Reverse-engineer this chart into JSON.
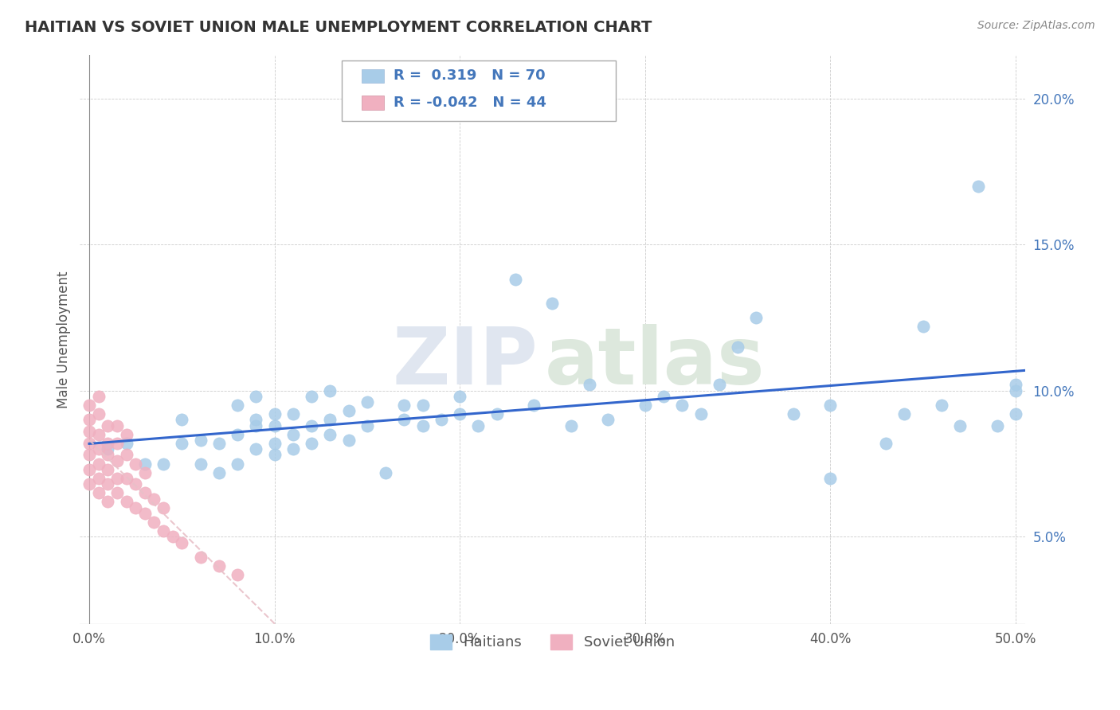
{
  "title": "HAITIAN VS SOVIET UNION MALE UNEMPLOYMENT CORRELATION CHART",
  "source_text": "Source: ZipAtlas.com",
  "ylabel": "Male Unemployment",
  "xlim": [
    -0.005,
    0.505
  ],
  "ylim": [
    0.02,
    0.215
  ],
  "yticks": [
    0.05,
    0.1,
    0.15,
    0.2
  ],
  "ytick_labels": [
    "5.0%",
    "10.0%",
    "15.0%",
    "20.0%"
  ],
  "xticks": [
    0.0,
    0.1,
    0.2,
    0.3,
    0.4,
    0.5
  ],
  "xtick_labels": [
    "0.0%",
    "10.0%",
    "20.0%",
    "30.0%",
    "40.0%",
    "50.0%"
  ],
  "background_color": "#ffffff",
  "grid_color": "#cccccc",
  "haitian_color": "#a8cce8",
  "soviet_color": "#f0b0c0",
  "haitian_line_color": "#3366cc",
  "soviet_line_color": "#d9a0a0",
  "tick_color": "#4477bb",
  "title_color": "#333333",
  "legend_r_haitian": "0.319",
  "legend_n_haitian": "70",
  "legend_r_soviet": "-0.042",
  "legend_n_soviet": "44",
  "haitian_x": [
    0.01,
    0.02,
    0.03,
    0.04,
    0.05,
    0.05,
    0.06,
    0.06,
    0.07,
    0.07,
    0.08,
    0.08,
    0.08,
    0.09,
    0.09,
    0.09,
    0.09,
    0.1,
    0.1,
    0.1,
    0.1,
    0.11,
    0.11,
    0.11,
    0.12,
    0.12,
    0.12,
    0.13,
    0.13,
    0.13,
    0.14,
    0.14,
    0.15,
    0.15,
    0.16,
    0.17,
    0.17,
    0.18,
    0.18,
    0.19,
    0.2,
    0.2,
    0.21,
    0.22,
    0.23,
    0.24,
    0.25,
    0.26,
    0.27,
    0.28,
    0.3,
    0.31,
    0.32,
    0.33,
    0.34,
    0.35,
    0.36,
    0.38,
    0.4,
    0.4,
    0.43,
    0.44,
    0.45,
    0.46,
    0.47,
    0.48,
    0.49,
    0.5,
    0.5,
    0.5
  ],
  "haitian_y": [
    0.08,
    0.082,
    0.075,
    0.075,
    0.082,
    0.09,
    0.075,
    0.083,
    0.072,
    0.082,
    0.075,
    0.085,
    0.095,
    0.08,
    0.088,
    0.09,
    0.098,
    0.078,
    0.082,
    0.088,
    0.092,
    0.08,
    0.085,
    0.092,
    0.082,
    0.088,
    0.098,
    0.085,
    0.09,
    0.1,
    0.083,
    0.093,
    0.088,
    0.096,
    0.072,
    0.09,
    0.095,
    0.088,
    0.095,
    0.09,
    0.092,
    0.098,
    0.088,
    0.092,
    0.138,
    0.095,
    0.13,
    0.088,
    0.102,
    0.09,
    0.095,
    0.098,
    0.095,
    0.092,
    0.102,
    0.115,
    0.125,
    0.092,
    0.07,
    0.095,
    0.082,
    0.092,
    0.122,
    0.095,
    0.088,
    0.17,
    0.088,
    0.102,
    0.092,
    0.1
  ],
  "soviet_x": [
    0.0,
    0.0,
    0.0,
    0.0,
    0.0,
    0.0,
    0.0,
    0.005,
    0.005,
    0.005,
    0.005,
    0.005,
    0.005,
    0.005,
    0.01,
    0.01,
    0.01,
    0.01,
    0.01,
    0.01,
    0.015,
    0.015,
    0.015,
    0.015,
    0.015,
    0.02,
    0.02,
    0.02,
    0.02,
    0.025,
    0.025,
    0.025,
    0.03,
    0.03,
    0.03,
    0.035,
    0.035,
    0.04,
    0.04,
    0.045,
    0.05,
    0.06,
    0.07,
    0.08
  ],
  "soviet_y": [
    0.068,
    0.073,
    0.078,
    0.082,
    0.086,
    0.09,
    0.095,
    0.065,
    0.07,
    0.075,
    0.08,
    0.085,
    0.092,
    0.098,
    0.062,
    0.068,
    0.073,
    0.078,
    0.082,
    0.088,
    0.065,
    0.07,
    0.076,
    0.082,
    0.088,
    0.062,
    0.07,
    0.078,
    0.085,
    0.06,
    0.068,
    0.075,
    0.058,
    0.065,
    0.072,
    0.055,
    0.063,
    0.052,
    0.06,
    0.05,
    0.048,
    0.043,
    0.04,
    0.037
  ]
}
